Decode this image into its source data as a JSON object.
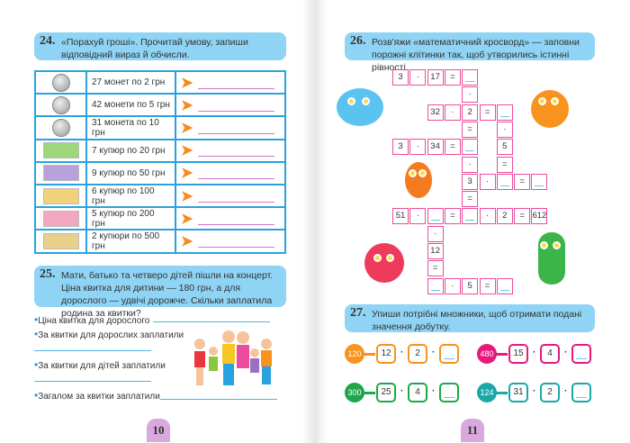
{
  "left_page": {
    "task24": {
      "number": "24.",
      "text": "«Порахуй гроші». Прочитай умову, запиши відповідний вираз й обчисли.",
      "rows": [
        {
          "icon": "coin-2-icon",
          "kind": "coin",
          "label": "27 монет по 2 грн"
        },
        {
          "icon": "coin-5-icon",
          "kind": "coin",
          "label": "42 монети по 5 грн"
        },
        {
          "icon": "coin-10-icon",
          "kind": "coin",
          "label": "31 монета по 10 грн"
        },
        {
          "icon": "banknote-20-icon",
          "kind": "note",
          "color": "#9ed67a",
          "label": "7 купюр по 20 грн"
        },
        {
          "icon": "banknote-50-icon",
          "kind": "note",
          "color": "#b9a2dc",
          "label": "9 купюр по 50 грн"
        },
        {
          "icon": "banknote-100-icon",
          "kind": "note",
          "color": "#f0d27a",
          "label": "6 купюр по 100 грн"
        },
        {
          "icon": "banknote-200-icon",
          "kind": "note",
          "color": "#f2a7bf",
          "label": "5 купюр по 200 грн"
        },
        {
          "icon": "banknote-500-icon",
          "kind": "note",
          "color": "#e8cf8a",
          "label": "2 купюри по 500 грн"
        }
      ]
    },
    "task25": {
      "number": "25.",
      "text": "Мати, батько та четверо дітей пішли на концерт. Ціна квитка для дитини — 180 грн, а для дорослого — удвічі дорожче. Скільки заплатила родина за квитки?",
      "bullets": [
        "Ціна квитка для дорослого",
        "За квитки для дорослих заплатили",
        "За квитки для дітей заплатили",
        "Загалом за квитки заплатили"
      ]
    },
    "page_number": "10"
  },
  "right_page": {
    "task26": {
      "number": "26.",
      "text": "Розв'яжи «математичний кросворд» — заповни порожні клітинки так, щоб утворились істинні рівності.",
      "grid": [
        [
          "3",
          "·",
          "17",
          "=",
          "",
          null,
          null,
          null,
          null
        ],
        [
          null,
          null,
          null,
          null,
          "·",
          null,
          null,
          null,
          null
        ],
        [
          null,
          null,
          "32",
          "·",
          "2",
          "=",
          "",
          null,
          null
        ],
        [
          null,
          null,
          null,
          null,
          "=",
          null,
          "·",
          null,
          null
        ],
        [
          "3",
          "·",
          "34",
          "=",
          "",
          null,
          "5",
          null,
          null
        ],
        [
          null,
          null,
          null,
          null,
          "·",
          null,
          "=",
          null,
          null
        ],
        [
          null,
          null,
          null,
          null,
          "3",
          "·",
          "",
          "=",
          ""
        ],
        [
          null,
          null,
          null,
          null,
          "=",
          null,
          null,
          null,
          null
        ],
        [
          "51",
          "·",
          "",
          "=",
          "",
          "·",
          "2",
          "=",
          "612"
        ],
        [
          null,
          null,
          "·",
          null,
          null,
          null,
          null,
          null,
          null
        ],
        [
          null,
          null,
          "12",
          null,
          null,
          null,
          null,
          null,
          null
        ],
        [
          null,
          null,
          "=",
          null,
          null,
          null,
          null,
          null,
          null
        ],
        [
          null,
          null,
          "",
          "·",
          "5",
          "=",
          "",
          null,
          null
        ]
      ]
    },
    "task27": {
      "number": "27.",
      "text": "Упиши потрібні множники, щоб отримати подані значення добутку.",
      "items": [
        {
          "product": "120",
          "a": "12",
          "b": "2",
          "color": "#f7931e"
        },
        {
          "product": "480",
          "a": "15",
          "b": "4",
          "color": "#e6197f"
        },
        {
          "product": "300",
          "a": "25",
          "b": "4",
          "color": "#1fa64a"
        },
        {
          "product": "124",
          "a": "31",
          "b": "2",
          "color": "#1aa7a8"
        }
      ],
      "operator": "·"
    },
    "page_number": "11"
  }
}
